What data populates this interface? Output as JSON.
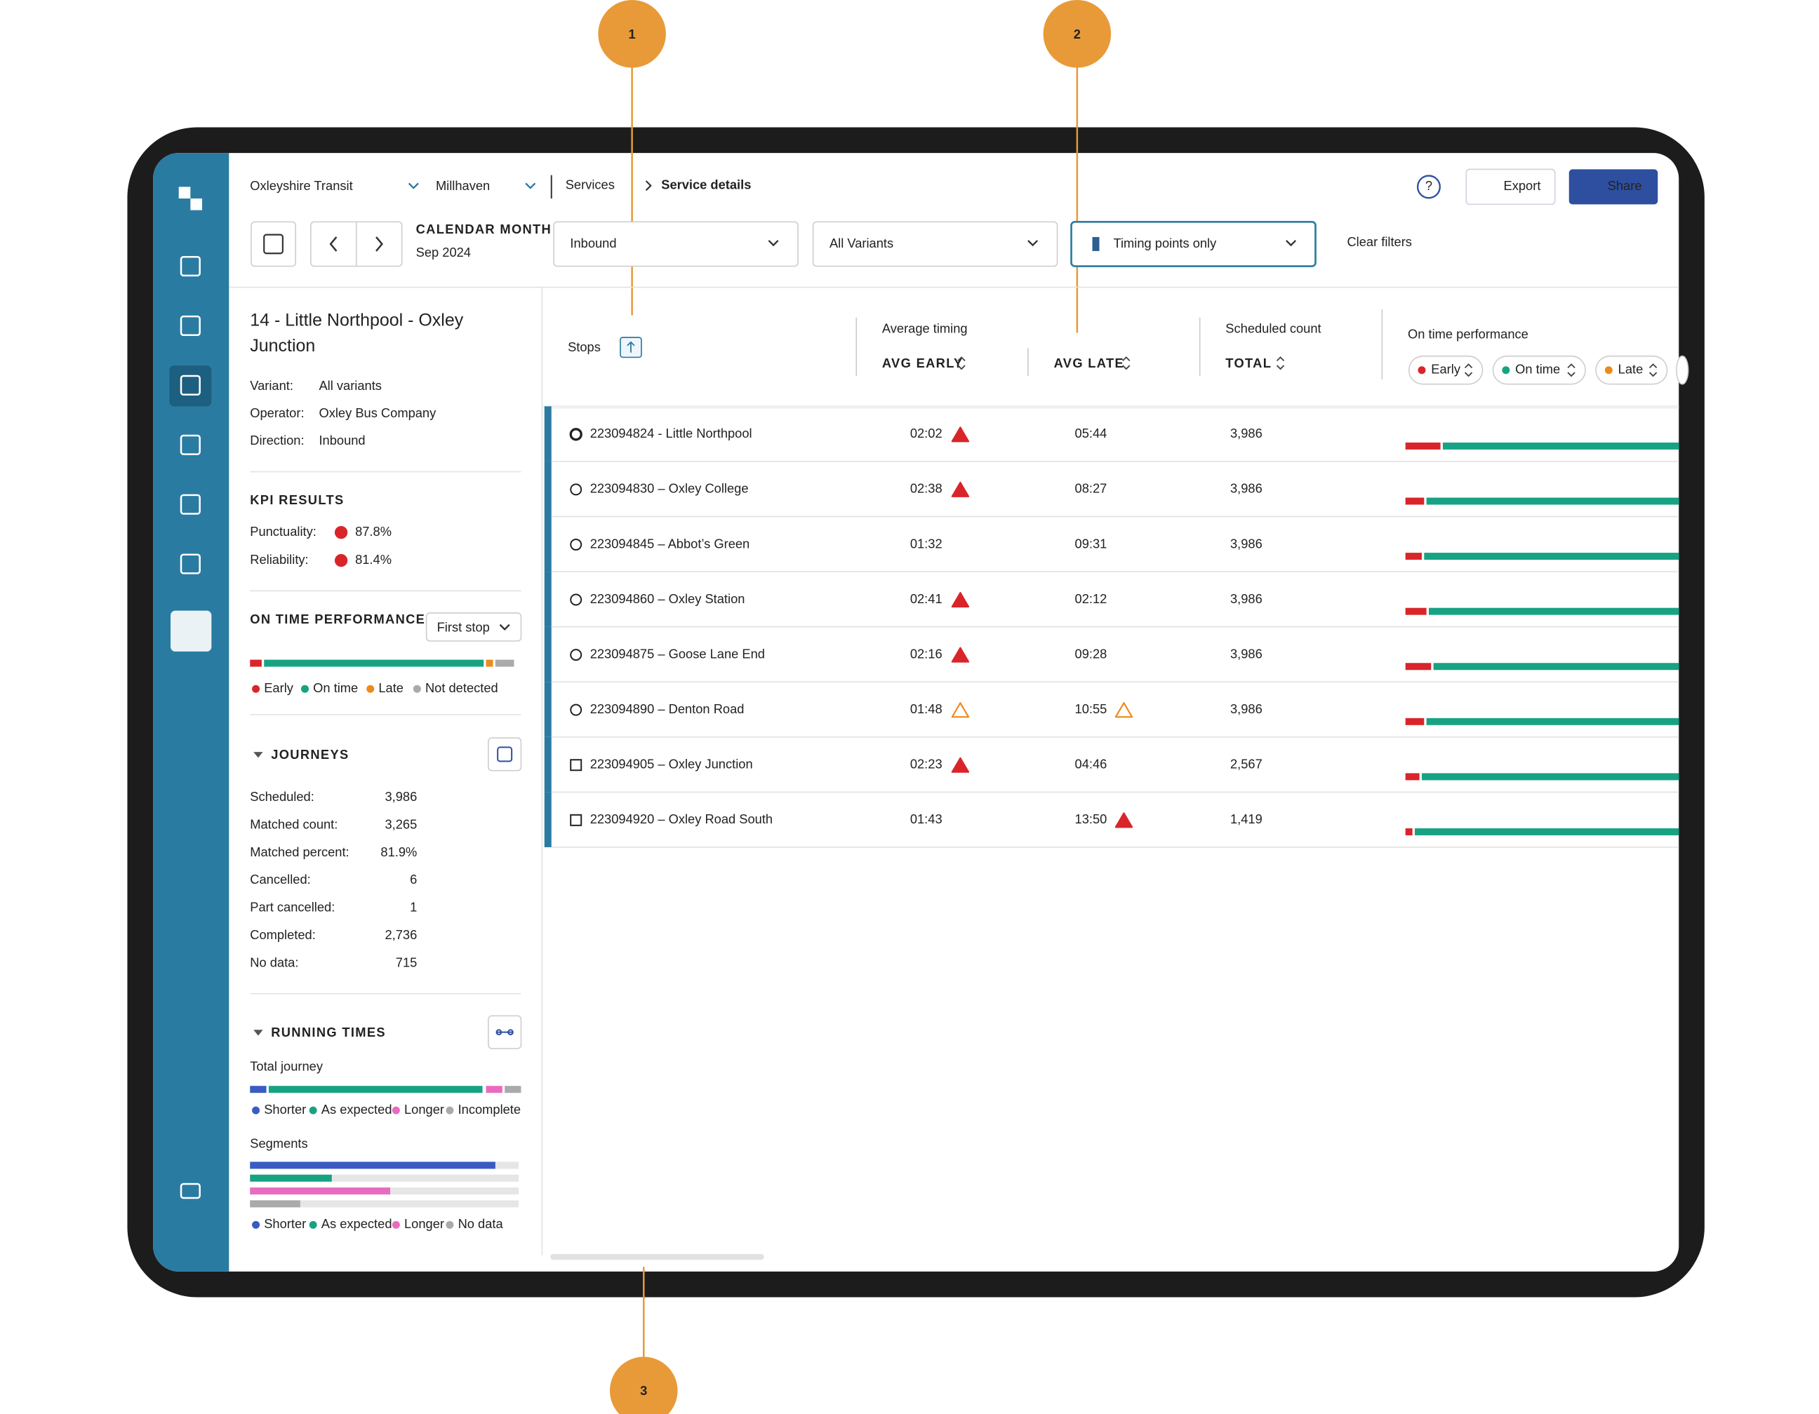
{
  "callouts": [
    "1",
    "2",
    "3"
  ],
  "header": {
    "org": "Oxleyshire Transit",
    "region": "Millhaven",
    "breadcrumb": [
      "Services",
      "Service details"
    ],
    "export": "Export",
    "share": "Share"
  },
  "filters": {
    "period_label": "CALENDAR MONTH",
    "period": "Sep 2024",
    "direction": "Inbound",
    "variant": "All Variants",
    "timing": "Timing points only",
    "clear": "Clear filters"
  },
  "sidebar": {
    "title": "14 - Little Northpool - Oxley Junction",
    "details": [
      {
        "label": "Variant:",
        "value": "All variants"
      },
      {
        "label": "Operator:",
        "value": "Oxley Bus Company"
      },
      {
        "label": "Direction:",
        "value": "Inbound"
      }
    ],
    "kpi": {
      "heading": "KPI RESULTS",
      "items": [
        {
          "label": "Punctuality:",
          "value": "87.8%"
        },
        {
          "label": "Reliability:",
          "value": "81.4%"
        }
      ]
    },
    "otp": {
      "heading": "ON TIME PERFORMANCE",
      "select": "First stop",
      "legend": [
        "Early",
        "On time",
        "Late",
        "Not detected"
      ]
    },
    "journeys": {
      "heading": "JOURNEYS",
      "items": [
        {
          "label": "Scheduled:",
          "value": "3,986"
        },
        {
          "label": "Matched count:",
          "value": "3,265"
        },
        {
          "label": "Matched percent:",
          "value": "81.9%"
        },
        {
          "label": "Cancelled:",
          "value": "6"
        },
        {
          "label": "Part cancelled:",
          "value": "1"
        },
        {
          "label": "Completed:",
          "value": "2,736"
        },
        {
          "label": "No data:",
          "value": "715"
        }
      ]
    },
    "running": {
      "heading": "RUNNING TIMES",
      "total_label": "Total journey",
      "total_legend": [
        "Shorter",
        "As expected",
        "Longer",
        "Incomplete"
      ],
      "segments_label": "Segments",
      "segments_legend": [
        "Shorter",
        "As expected",
        "Longer",
        "No data"
      ]
    }
  },
  "table": {
    "columns": {
      "stops": "Stops",
      "avg_timing": "Average timing",
      "avg_early": "AVG EARLY",
      "avg_late": "AVG LATE",
      "scheduled": "Scheduled count",
      "total": "TOTAL",
      "otp": "On time performance",
      "chips": [
        "Early",
        "On time",
        "Late"
      ]
    },
    "rows": [
      {
        "stop": "223094824 - Little Northpool",
        "marker": "circle",
        "early": "02:02",
        "early_alert": "red",
        "late": "05:44",
        "count": "3,986"
      },
      {
        "stop": "223094830 – Oxley College",
        "marker": "circle",
        "early": "02:38",
        "early_alert": "red",
        "late": "08:27",
        "count": "3,986"
      },
      {
        "stop": "223094845 – Abbot’s Green",
        "marker": "circle",
        "early": "01:32",
        "late": "09:31",
        "count": "3,986"
      },
      {
        "stop": "223094860 – Oxley Station",
        "marker": "circle",
        "early": "02:41",
        "early_alert": "red",
        "late": "02:12",
        "count": "3,986"
      },
      {
        "stop": "223094875 – Goose Lane End",
        "marker": "circle",
        "early": "02:16",
        "early_alert": "red",
        "late": "09:28",
        "count": "3,986"
      },
      {
        "stop": "223094890 – Denton Road",
        "marker": "circle",
        "early": "01:48",
        "early_alert": "orange",
        "late": "10:55",
        "late_alert": "orange",
        "count": "3,986"
      },
      {
        "stop": "223094905 – Oxley Junction",
        "marker": "square",
        "early": "02:23",
        "early_alert": "red",
        "late": "04:46",
        "count": "2,567"
      },
      {
        "stop": "223094920 – Oxley Road South",
        "marker": "square",
        "early": "01:43",
        "late": "13:50",
        "late_alert": "red",
        "count": "1,419"
      }
    ]
  }
}
